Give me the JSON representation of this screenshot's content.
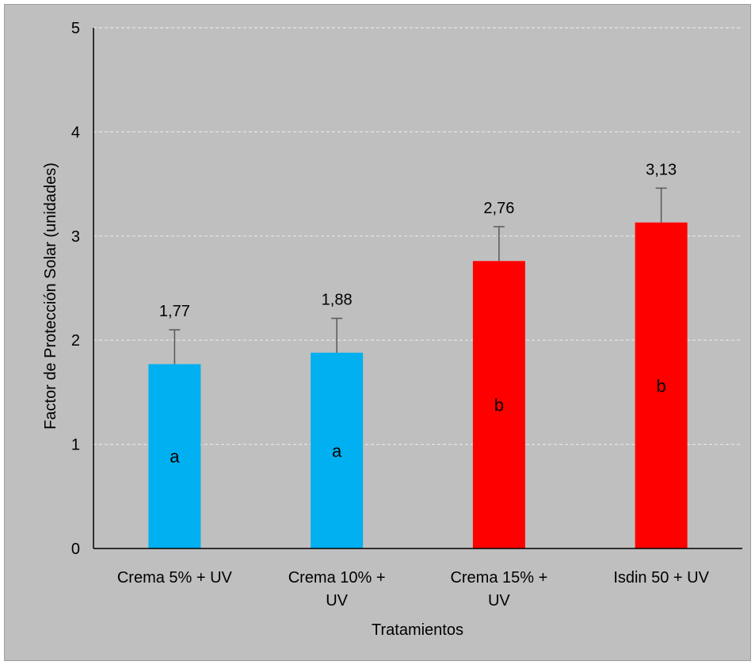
{
  "chart_data": {
    "type": "bar",
    "title": "",
    "xlabel": "Tratamientos",
    "ylabel": "Factor de Protección Solar (unidades)",
    "ylim": [
      0,
      5
    ],
    "yticks": [
      0,
      1,
      2,
      3,
      4,
      5
    ],
    "grid": true,
    "categories": [
      [
        "Crema 5% + UV"
      ],
      [
        "Crema 10% +",
        "UV"
      ],
      [
        "Crema 15% +",
        "UV"
      ],
      [
        "Isdin 50 + UV"
      ]
    ],
    "values": [
      1.77,
      1.88,
      2.76,
      3.13
    ],
    "errors": [
      0.33,
      0.33,
      0.33,
      0.33
    ],
    "value_labels": [
      "1,77",
      "1,88",
      "2,76",
      "3,13"
    ],
    "group_letters": [
      "a",
      "a",
      "b",
      "b"
    ],
    "colors": [
      "#00b0f0",
      "#00b0f0",
      "#ff0000",
      "#ff0000"
    ],
    "background": "#bfbfbf",
    "gridline_color": "#e6e6e6"
  }
}
